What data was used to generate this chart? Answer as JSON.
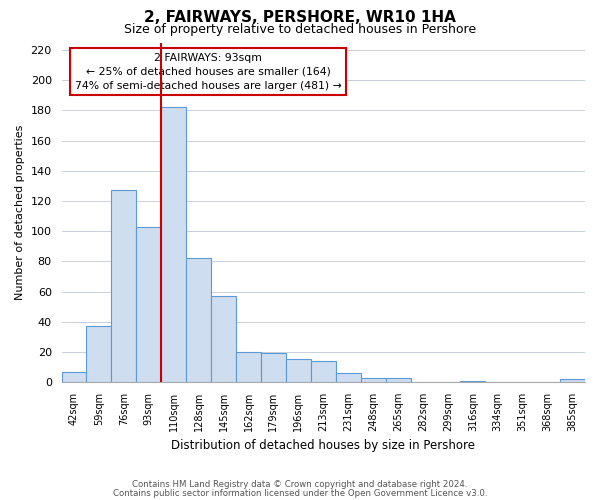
{
  "title": "2, FAIRWAYS, PERSHORE, WR10 1HA",
  "subtitle": "Size of property relative to detached houses in Pershore",
  "xlabel": "Distribution of detached houses by size in Pershore",
  "ylabel": "Number of detached properties",
  "bar_color": "#cfddf0",
  "bar_edge_color": "#5b9bd5",
  "bin_labels": [
    "42sqm",
    "59sqm",
    "76sqm",
    "93sqm",
    "110sqm",
    "128sqm",
    "145sqm",
    "162sqm",
    "179sqm",
    "196sqm",
    "213sqm",
    "231sqm",
    "248sqm",
    "265sqm",
    "282sqm",
    "299sqm",
    "316sqm",
    "334sqm",
    "351sqm",
    "368sqm",
    "385sqm"
  ],
  "bar_heights": [
    7,
    37,
    127,
    103,
    182,
    82,
    57,
    20,
    19,
    15,
    14,
    6,
    3,
    3,
    0,
    0,
    1,
    0,
    0,
    0,
    2
  ],
  "vline_color": "#cc0000",
  "annotation_title": "2 FAIRWAYS: 93sqm",
  "annotation_line1": "← 25% of detached houses are smaller (164)",
  "annotation_line2": "74% of semi-detached houses are larger (481) →",
  "annotation_box_color": "#ffffff",
  "annotation_box_edge": "#cc0000",
  "ylim": [
    0,
    225
  ],
  "yticks": [
    0,
    20,
    40,
    60,
    80,
    100,
    120,
    140,
    160,
    180,
    200,
    220
  ],
  "footer_line1": "Contains HM Land Registry data © Crown copyright and database right 2024.",
  "footer_line2": "Contains public sector information licensed under the Open Government Licence v3.0.",
  "background_color": "#ffffff",
  "grid_color": "#c8d0dc"
}
